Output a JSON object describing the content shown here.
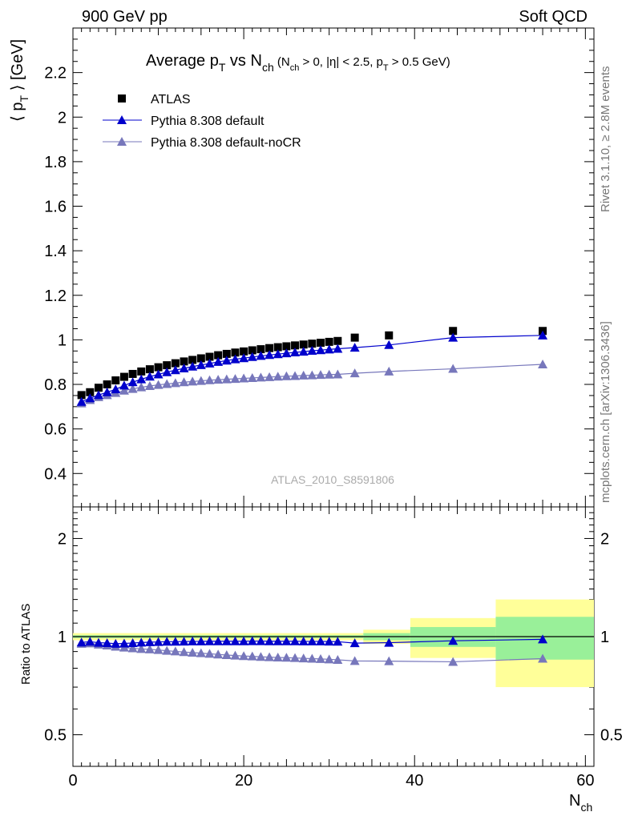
{
  "header": {
    "left": "900 GeV pp",
    "right": "Soft QCD"
  },
  "side_text": {
    "rivet": "Rivet 3.1.10, ≥ 2.8M events",
    "mcplots": "mcplots.cern.ch [arXiv:1306.3436]"
  },
  "watermark": "ATLAS_2010_S8591806",
  "title": {
    "main": "Average p",
    "main_sub": "T",
    "vs": " vs N",
    "vs_sub": "ch",
    "cond_open": " (N",
    "cond_sub1": "ch",
    "cond_mid": " > 0, |η| < 2.5, p",
    "cond_sub2": "T",
    "cond_close": " > 0.5 GeV)"
  },
  "axes": {
    "ylabel_pre": "⟨ p",
    "ylabel_sub": "T",
    "ylabel_post": " ⟩ [GeV]",
    "xlabel": "N",
    "xlabel_sub": "ch",
    "ratio_ylabel": "Ratio to ATLAS"
  },
  "legend": {
    "atlas": "ATLAS",
    "default": "Pythia 8.308 default",
    "nocr": "Pythia 8.308 default-noCR"
  },
  "colors": {
    "atlas": "#000000",
    "default": "#0000cc",
    "nocr": "#7777bb",
    "band_inner": "#99f099",
    "band_outer": "#ffff99"
  },
  "chart_data": {
    "type": "scatter",
    "main": {
      "xlim": [
        0,
        61
      ],
      "ylim": [
        0.25,
        2.4
      ],
      "yticks_major": [
        0.4,
        0.6,
        0.8,
        1.0,
        1.2,
        1.4,
        1.6,
        1.8,
        2.0,
        2.2
      ],
      "ytick_labels": [
        "0.4",
        "0.6",
        "0.8",
        "1",
        "1.2",
        "1.4",
        "1.6",
        "1.8",
        "2",
        "2.2"
      ],
      "xticks_major": [
        0,
        20,
        40,
        60
      ],
      "xtick_labels": [
        "0",
        "20",
        "40",
        "60"
      ],
      "series": [
        {
          "name": "ATLAS",
          "marker": "square",
          "x": [
            1,
            2,
            3,
            4,
            5,
            6,
            7,
            8,
            9,
            10,
            11,
            12,
            13,
            14,
            15,
            16,
            17,
            18,
            19,
            20,
            21,
            22,
            23,
            24,
            25,
            26,
            27,
            28,
            29,
            30,
            31,
            33,
            37,
            44.5,
            55
          ],
          "y": [
            0.752,
            0.765,
            0.785,
            0.8,
            0.818,
            0.834,
            0.847,
            0.858,
            0.868,
            0.877,
            0.886,
            0.895,
            0.903,
            0.91,
            0.917,
            0.924,
            0.931,
            0.937,
            0.943,
            0.948,
            0.953,
            0.958,
            0.963,
            0.967,
            0.971,
            0.975,
            0.979,
            0.983,
            0.987,
            0.991,
            0.995,
            1.01,
            1.02,
            1.04,
            1.04
          ]
        },
        {
          "name": "Pythia 8.308 default",
          "marker": "triangle",
          "line": true,
          "x": [
            1,
            2,
            3,
            4,
            5,
            6,
            7,
            8,
            9,
            10,
            11,
            12,
            13,
            14,
            15,
            16,
            17,
            18,
            19,
            20,
            21,
            22,
            23,
            24,
            25,
            26,
            27,
            28,
            29,
            30,
            31,
            33,
            37,
            44.5,
            55
          ],
          "y": [
            0.722,
            0.738,
            0.752,
            0.765,
            0.778,
            0.795,
            0.81,
            0.823,
            0.835,
            0.845,
            0.855,
            0.864,
            0.872,
            0.88,
            0.887,
            0.894,
            0.901,
            0.907,
            0.913,
            0.918,
            0.923,
            0.928,
            0.932,
            0.936,
            0.94,
            0.944,
            0.947,
            0.951,
            0.954,
            0.957,
            0.96,
            0.965,
            0.977,
            1.01,
            1.02
          ]
        },
        {
          "name": "Pythia 8.308 default-noCR",
          "marker": "triangle",
          "line": true,
          "x": [
            1,
            2,
            3,
            4,
            5,
            6,
            7,
            8,
            9,
            10,
            11,
            12,
            13,
            14,
            15,
            16,
            17,
            18,
            19,
            20,
            21,
            22,
            23,
            24,
            25,
            26,
            27,
            28,
            29,
            30,
            31,
            33,
            37,
            44.5,
            55
          ],
          "y": [
            0.715,
            0.73,
            0.743,
            0.752,
            0.762,
            0.772,
            0.78,
            0.787,
            0.793,
            0.798,
            0.802,
            0.806,
            0.81,
            0.813,
            0.816,
            0.819,
            0.821,
            0.823,
            0.825,
            0.827,
            0.829,
            0.831,
            0.833,
            0.835,
            0.837,
            0.838,
            0.84,
            0.841,
            0.843,
            0.844,
            0.845,
            0.85,
            0.858,
            0.87,
            0.89
          ]
        }
      ]
    },
    "ratio": {
      "ylim": [
        0.4,
        2.5
      ],
      "log_y": true,
      "yticks_major": [
        0.5,
        1,
        2
      ],
      "ytick_labels": [
        "0.5",
        "1",
        "2"
      ],
      "bands": [
        {
          "x0": 0,
          "x1": 34,
          "inner": 0.01,
          "outer": 0.025
        },
        {
          "x0": 34,
          "x1": 39.5,
          "inner": 0.025,
          "outer": 0.05
        },
        {
          "x0": 39.5,
          "x1": 49.5,
          "inner": 0.07,
          "outer": 0.14
        },
        {
          "x0": 49.5,
          "x1": 61,
          "inner": 0.15,
          "outer": 0.3
        }
      ],
      "series": [
        {
          "name": "Pythia 8.308 default",
          "x": [
            1,
            2,
            3,
            4,
            5,
            6,
            7,
            8,
            9,
            10,
            11,
            12,
            13,
            14,
            15,
            16,
            17,
            18,
            19,
            20,
            21,
            22,
            23,
            24,
            25,
            26,
            27,
            28,
            29,
            30,
            31,
            33,
            37,
            44.5,
            55
          ],
          "y": [
            0.96,
            0.965,
            0.958,
            0.956,
            0.951,
            0.953,
            0.956,
            0.959,
            0.962,
            0.963,
            0.965,
            0.965,
            0.966,
            0.967,
            0.967,
            0.968,
            0.968,
            0.968,
            0.968,
            0.968,
            0.969,
            0.969,
            0.968,
            0.968,
            0.968,
            0.968,
            0.967,
            0.967,
            0.967,
            0.966,
            0.965,
            0.955,
            0.958,
            0.971,
            0.981
          ]
        },
        {
          "name": "Pythia 8.308 default-noCR",
          "x": [
            1,
            2,
            3,
            4,
            5,
            6,
            7,
            8,
            9,
            10,
            11,
            12,
            13,
            14,
            15,
            16,
            17,
            18,
            19,
            20,
            21,
            22,
            23,
            24,
            25,
            26,
            27,
            28,
            29,
            30,
            31,
            33,
            37,
            44.5,
            55
          ],
          "y": [
            0.951,
            0.954,
            0.946,
            0.94,
            0.932,
            0.926,
            0.921,
            0.917,
            0.914,
            0.91,
            0.905,
            0.901,
            0.897,
            0.893,
            0.89,
            0.886,
            0.882,
            0.878,
            0.875,
            0.872,
            0.87,
            0.867,
            0.865,
            0.863,
            0.862,
            0.86,
            0.858,
            0.856,
            0.854,
            0.852,
            0.849,
            0.842,
            0.841,
            0.837,
            0.856
          ]
        }
      ]
    }
  }
}
